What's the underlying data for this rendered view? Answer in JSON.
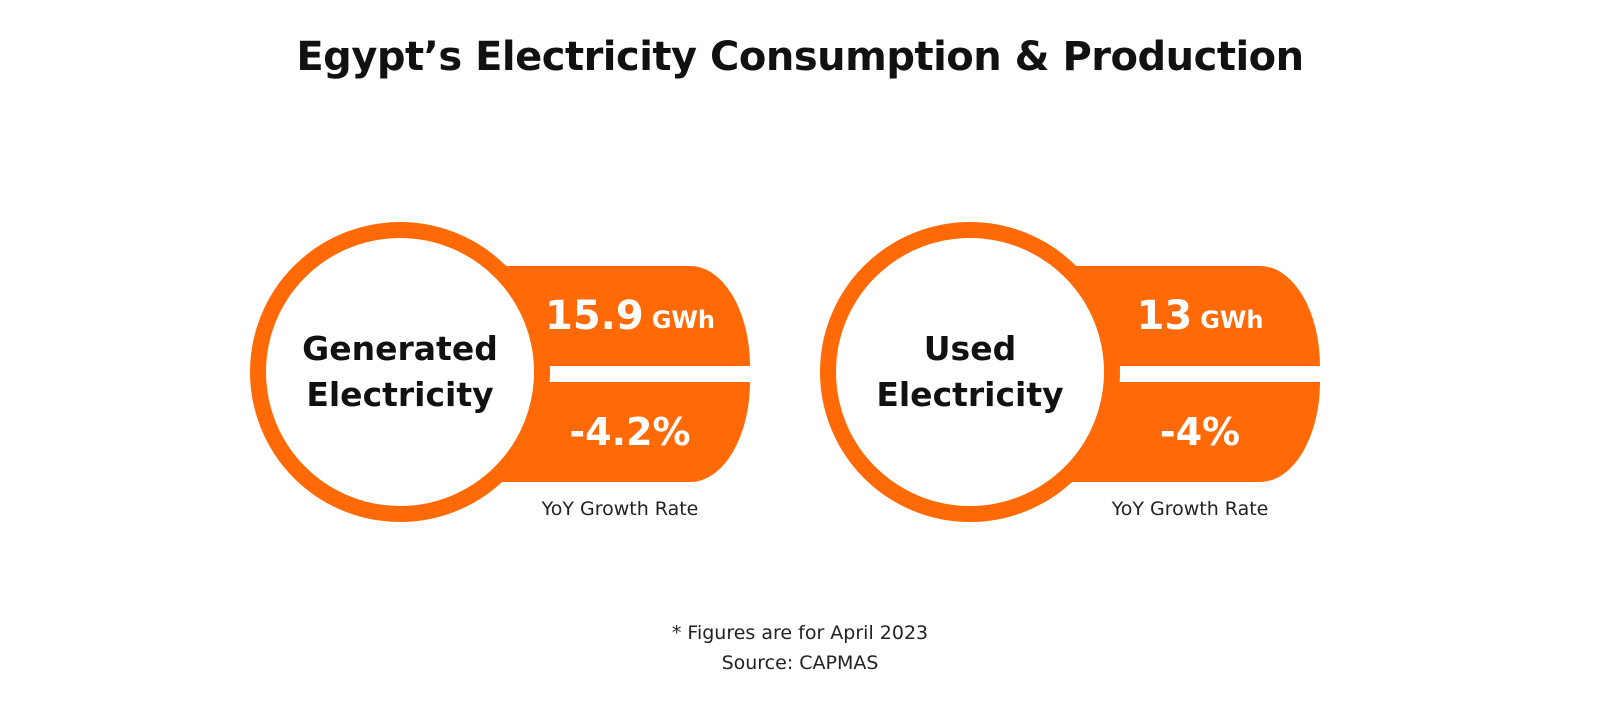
{
  "title": "Egypt’s Electricity Consumption & Production",
  "colors": {
    "accent": "#ff6a06",
    "text": "#111111"
  },
  "cards": [
    {
      "label_line1": "Generated",
      "label_line2": "Electricity",
      "value": "15.9",
      "unit": "GWh",
      "growth": "-4.2%",
      "growth_label": "YoY Growth Rate"
    },
    {
      "label_line1": "Used",
      "label_line2": "Electricity",
      "value": "13",
      "unit": "GWh",
      "growth": "-4%",
      "growth_label": "YoY Growth Rate"
    }
  ],
  "footer": {
    "note": "* Figures are for April 2023",
    "source": "Source: CAPMAS"
  }
}
